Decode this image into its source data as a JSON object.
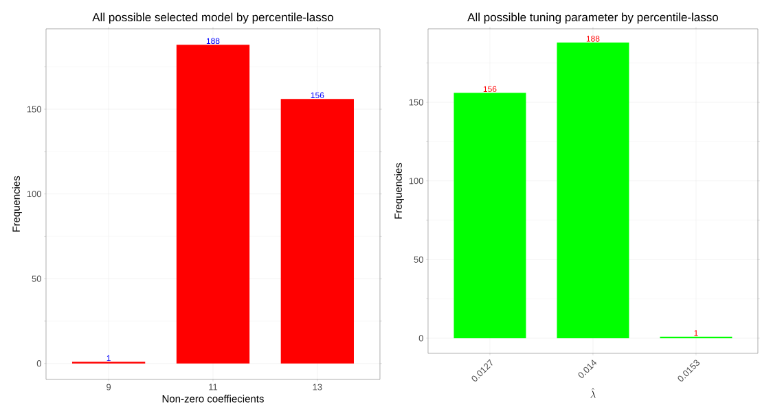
{
  "chart_data": [
    {
      "type": "bar",
      "title": "All possible selected model by percentile-lasso",
      "xlabel": "Non-zero coeffiecients",
      "ylabel": "Frequencies",
      "categories": [
        "9",
        "11",
        "13"
      ],
      "values": [
        1,
        188,
        156
      ],
      "color": "#ff0000",
      "data_labels": true,
      "ylim": [
        -9.4,
        197.4
      ],
      "yticks": [
        0,
        50,
        100,
        150
      ],
      "grid": true
    },
    {
      "type": "bar",
      "title": "All possible tuning parameter by percentile-lasso",
      "xlabel": "\\hat{\\lambda}",
      "ylabel": "Frequencies",
      "categories": [
        "0.0127",
        "0.014",
        "0.0153"
      ],
      "values": [
        156,
        188,
        1
      ],
      "color": "#00ff00",
      "data_labels": true,
      "ylim": [
        -9.6,
        196.7
      ],
      "yticks": [
        0,
        50,
        100,
        150
      ],
      "grid": true
    }
  ]
}
